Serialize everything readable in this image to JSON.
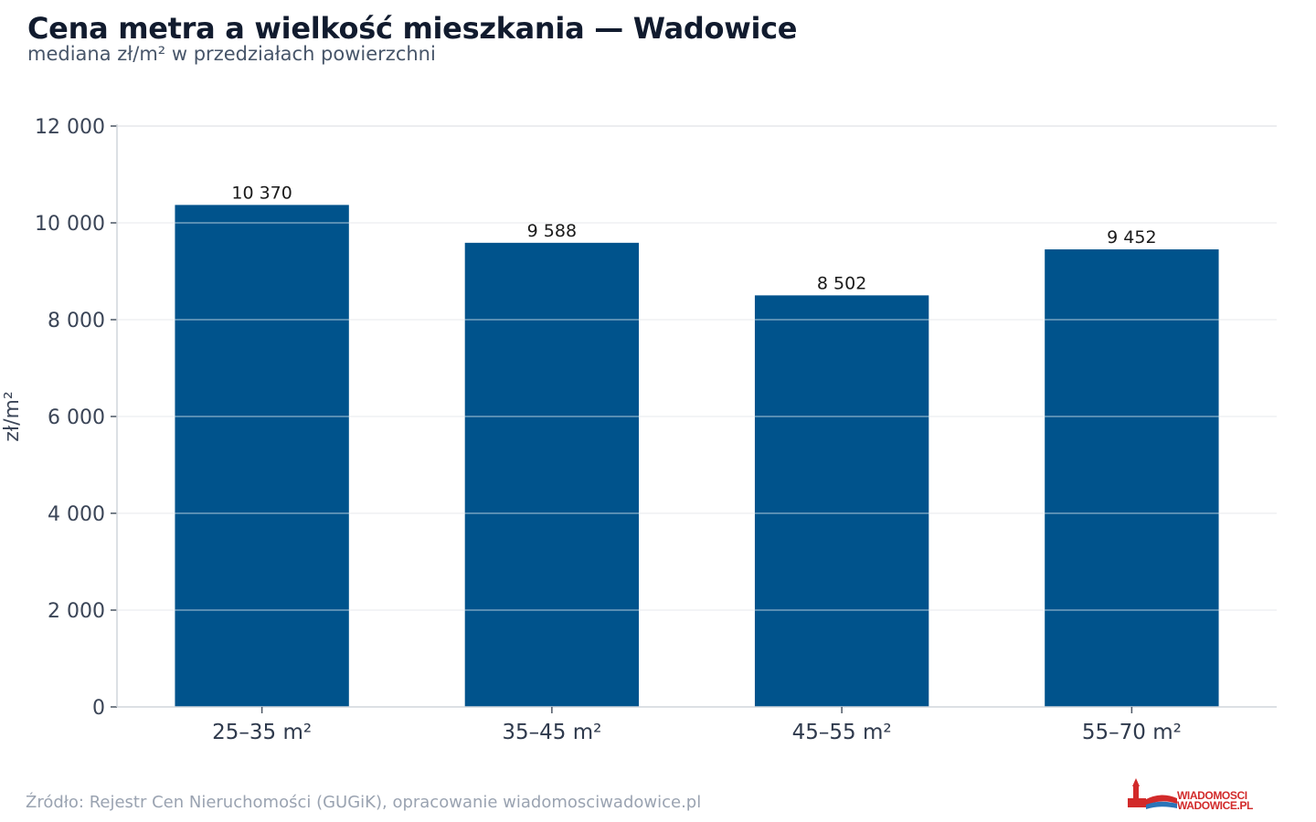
{
  "title": "Cena metra a wielkość mieszkania — Wadowice",
  "subtitle": "mediana zł/m² w przedziałach powierzchni",
  "source": "Źródło: Rejestr Cen Nieruchomości (GUGiK), opracowanie wiadomosciwadowice.pl",
  "logo": {
    "line1": "WIADOMOSCI",
    "line2": "WADOWICE.PL"
  },
  "colors": {
    "bar": "#00538c",
    "grid": "#e5e7eb",
    "axis": "#d1d5db",
    "logo": "#d22a2a"
  },
  "chart_data": {
    "type": "bar",
    "categories": [
      "25–35 m²",
      "35–45 m²",
      "45–55 m²",
      "55–70 m²"
    ],
    "values": [
      10370,
      9588,
      8502,
      9452
    ],
    "value_labels": [
      "10 370",
      "9 588",
      "8 502",
      "9 452"
    ],
    "ylabel": "zł/m²",
    "xlabel": "",
    "ylim": [
      0,
      12000
    ],
    "yticks": [
      0,
      2000,
      4000,
      6000,
      8000,
      10000,
      12000
    ],
    "ytick_labels": [
      "0",
      "2 000",
      "4 000",
      "6 000",
      "8 000",
      "10 000",
      "12 000"
    ],
    "grid": true,
    "legend": "none"
  }
}
